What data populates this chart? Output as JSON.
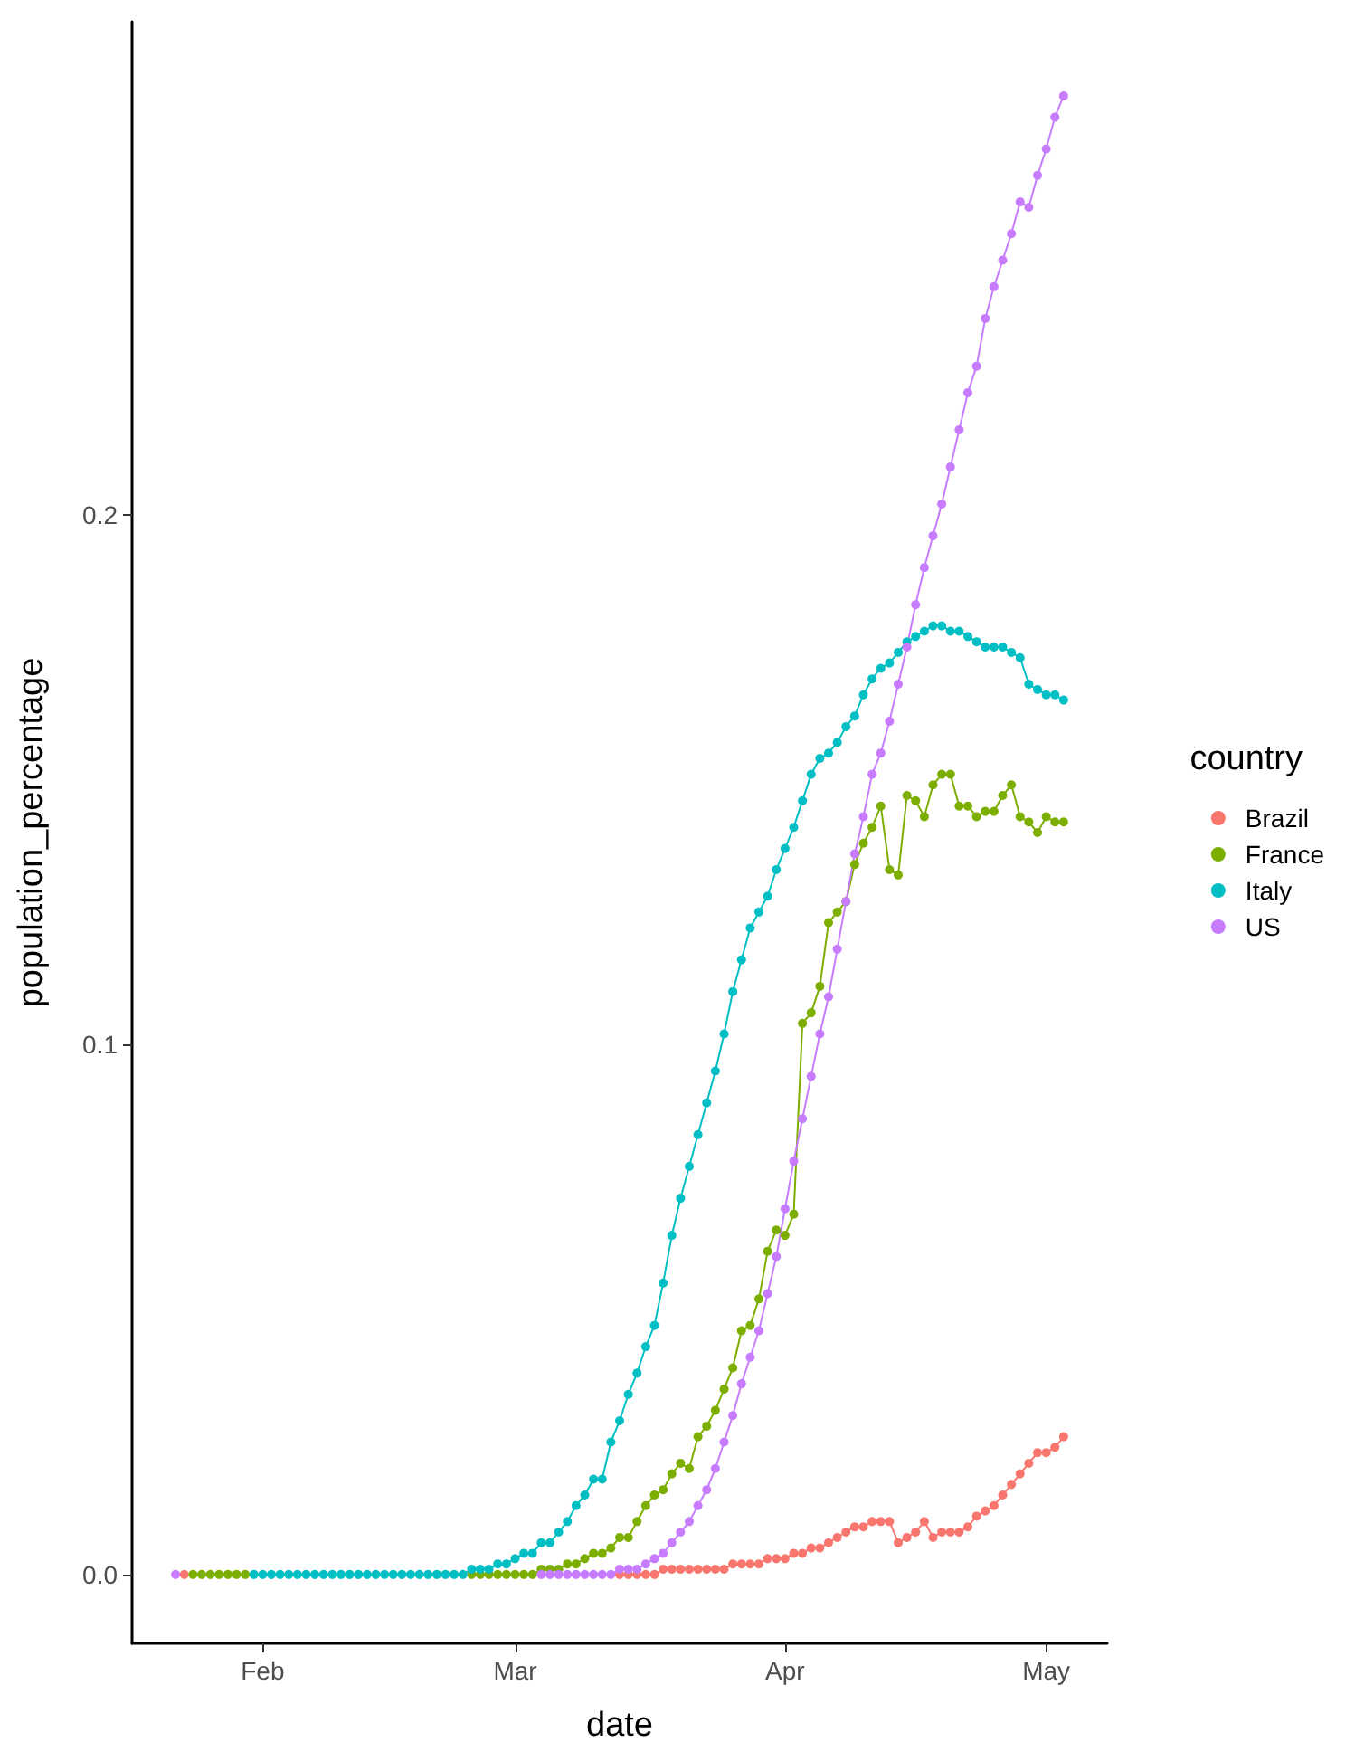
{
  "chart_data": {
    "type": "line",
    "xlabel": "date",
    "ylabel": "population_percentage",
    "legend_title": "country",
    "legend": "right",
    "grid": false,
    "marker": "circle",
    "line_style": "solid",
    "xlim": [
      "--01-17",
      "--05-08"
    ],
    "xticks": [
      {
        "value": "--02-01",
        "label": "Feb"
      },
      {
        "value": "--03-01",
        "label": "Mar"
      },
      {
        "value": "--04-01",
        "label": "Apr"
      },
      {
        "value": "--05-01",
        "label": "May"
      }
    ],
    "ylim": [
      -0.013,
      0.293
    ],
    "yticks": [
      {
        "value": 0,
        "label": "0.0"
      },
      {
        "value": 0.1,
        "label": "0.1"
      },
      {
        "value": 0.2,
        "label": "0.2"
      }
    ],
    "x": [
      "--01-22",
      "--01-23",
      "--01-24",
      "--01-25",
      "--01-26",
      "--01-27",
      "--01-28",
      "--01-29",
      "--01-30",
      "--01-31",
      "--02-01",
      "--02-02",
      "--02-03",
      "--02-04",
      "--02-05",
      "--02-06",
      "--02-07",
      "--02-08",
      "--02-09",
      "--02-10",
      "--02-11",
      "--02-12",
      "--02-13",
      "--02-14",
      "--02-15",
      "--02-16",
      "--02-17",
      "--02-18",
      "--02-19",
      "--02-20",
      "--02-21",
      "--02-22",
      "--02-23",
      "--02-24",
      "--02-25",
      "--02-26",
      "--02-27",
      "--02-28",
      "--02-29",
      "--03-01",
      "--03-02",
      "--03-03",
      "--03-04",
      "--03-05",
      "--03-06",
      "--03-07",
      "--03-08",
      "--03-09",
      "--03-10",
      "--03-11",
      "--03-12",
      "--03-13",
      "--03-14",
      "--03-15",
      "--03-16",
      "--03-17",
      "--03-18",
      "--03-19",
      "--03-20",
      "--03-21",
      "--03-22",
      "--03-23",
      "--03-24",
      "--03-25",
      "--03-26",
      "--03-27",
      "--03-28",
      "--03-29",
      "--03-30",
      "--03-31",
      "--04-01",
      "--04-02",
      "--04-03",
      "--04-04",
      "--04-05",
      "--04-06",
      "--04-07",
      "--04-08",
      "--04-09",
      "--04-10",
      "--04-11",
      "--04-12",
      "--04-13",
      "--04-14",
      "--04-15",
      "--04-16",
      "--04-17",
      "--04-18",
      "--04-19",
      "--04-20",
      "--04-21",
      "--04-22",
      "--04-23",
      "--04-24",
      "--04-25",
      "--04-26",
      "--04-27",
      "--04-28",
      "--04-29",
      "--04-30",
      "--05-01",
      "--05-02",
      "--05-03"
    ],
    "series": [
      {
        "name": "Brazil",
        "color": "#f8766d",
        "values": [
          null,
          0,
          null,
          null,
          null,
          null,
          null,
          null,
          null,
          null,
          null,
          null,
          null,
          null,
          null,
          null,
          null,
          null,
          null,
          null,
          null,
          null,
          null,
          null,
          null,
          null,
          null,
          null,
          null,
          null,
          null,
          null,
          null,
          null,
          null,
          null,
          null,
          null,
          null,
          null,
          null,
          null,
          null,
          null,
          null,
          null,
          null,
          null,
          null,
          null,
          null,
          0,
          0,
          0,
          0,
          0,
          0.001,
          0.001,
          0.001,
          0.001,
          0.001,
          0.001,
          0.001,
          0.001,
          0.002,
          0.002,
          0.002,
          0.002,
          0.003,
          0.003,
          0.003,
          0.004,
          0.004,
          0.005,
          0.005,
          0.006,
          0.007,
          0.008,
          0.009,
          0.009,
          0.01,
          0.01,
          0.01,
          0.006,
          0.007,
          0.008,
          0.01,
          0.007,
          0.008,
          0.008,
          0.008,
          0.009,
          0.011,
          0.012,
          0.013,
          0.015,
          0.017,
          0.019,
          0.021,
          0.023,
          0.023,
          0.024,
          0.026
        ]
      },
      {
        "name": "France",
        "color": "#7cae00",
        "values": [
          null,
          null,
          0,
          0,
          0,
          0,
          0,
          0,
          0,
          null,
          null,
          null,
          null,
          null,
          null,
          null,
          null,
          null,
          null,
          null,
          null,
          null,
          null,
          null,
          null,
          null,
          null,
          null,
          null,
          null,
          null,
          null,
          null,
          null,
          0,
          0,
          0,
          0,
          0,
          0,
          0,
          0,
          0.001,
          0.001,
          0.001,
          0.002,
          0.002,
          0.003,
          0.004,
          0.004,
          0.005,
          0.007,
          0.007,
          0.01,
          0.013,
          0.015,
          0.016,
          0.019,
          0.021,
          0.02,
          0.026,
          0.028,
          0.031,
          0.035,
          0.039,
          0.046,
          0.047,
          0.052,
          0.061,
          0.065,
          0.064,
          0.068,
          0.104,
          0.106,
          0.111,
          0.123,
          0.125,
          0.127,
          0.134,
          0.138,
          0.141,
          0.145,
          0.133,
          0.132,
          0.147,
          0.146,
          0.143,
          0.149,
          0.151,
          0.151,
          0.145,
          0.145,
          0.143,
          0.144,
          0.144,
          0.147,
          0.149,
          0.143,
          0.142,
          0.14,
          0.143,
          0.142,
          0.142
        ]
      },
      {
        "name": "Italy",
        "color": "#00bfc4",
        "values": [
          null,
          null,
          null,
          null,
          null,
          null,
          null,
          null,
          null,
          0,
          0,
          0,
          0,
          0,
          0,
          0,
          0,
          0,
          0,
          0,
          0,
          0,
          0,
          0,
          0,
          0,
          0,
          0,
          0,
          0,
          0,
          0,
          0,
          0,
          0.001,
          0.001,
          0.001,
          0.002,
          0.002,
          0.003,
          0.004,
          0.004,
          0.006,
          0.006,
          0.008,
          0.01,
          0.013,
          0.015,
          0.018,
          0.018,
          0.025,
          0.029,
          0.034,
          0.038,
          0.043,
          0.047,
          0.055,
          0.064,
          0.071,
          0.077,
          0.083,
          0.089,
          0.095,
          0.102,
          0.11,
          0.116,
          0.122,
          0.125,
          0.128,
          0.133,
          0.137,
          0.141,
          0.146,
          0.151,
          0.154,
          0.155,
          0.157,
          0.16,
          0.162,
          0.166,
          0.169,
          0.171,
          0.172,
          0.174,
          0.176,
          0.177,
          0.178,
          0.179,
          0.179,
          0.178,
          0.178,
          0.177,
          0.176,
          0.175,
          0.175,
          0.175,
          0.174,
          0.173,
          0.168,
          0.167,
          0.166,
          0.166,
          0.165
        ]
      },
      {
        "name": "US",
        "color": "#c77cff",
        "values": [
          0,
          null,
          null,
          null,
          null,
          null,
          null,
          null,
          null,
          null,
          null,
          null,
          null,
          null,
          null,
          null,
          null,
          null,
          null,
          null,
          null,
          null,
          null,
          null,
          null,
          null,
          null,
          null,
          null,
          null,
          null,
          null,
          null,
          null,
          null,
          null,
          null,
          null,
          null,
          null,
          null,
          null,
          0,
          0,
          0,
          0,
          0,
          0,
          0,
          0,
          0,
          0.001,
          0.001,
          0.001,
          0.002,
          0.003,
          0.004,
          0.006,
          0.008,
          0.01,
          0.013,
          0.016,
          0.02,
          0.025,
          0.03,
          0.036,
          0.041,
          0.046,
          0.053,
          0.06,
          0.069,
          0.078,
          0.086,
          0.094,
          0.102,
          0.109,
          0.118,
          0.127,
          0.136,
          0.143,
          0.151,
          0.155,
          0.161,
          0.168,
          0.175,
          0.183,
          0.19,
          0.196,
          0.202,
          0.209,
          0.216,
          0.223,
          0.228,
          0.237,
          0.243,
          0.248,
          0.253,
          0.259,
          0.258,
          0.264,
          0.269,
          0.275,
          0.279
        ]
      }
    ]
  }
}
